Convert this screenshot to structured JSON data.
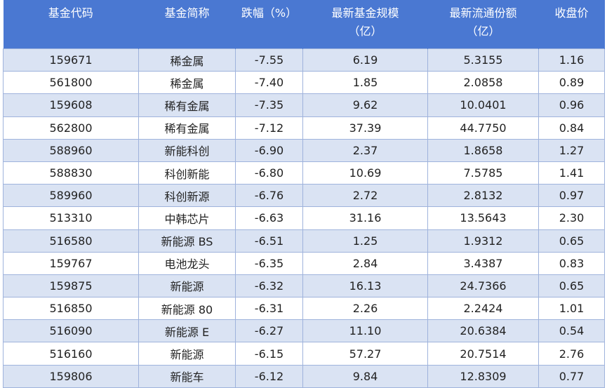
{
  "table": {
    "header": [
      [
        "基金代码"
      ],
      [
        "基金简称"
      ],
      [
        "跌幅（%）"
      ],
      [
        "最新基金规模",
        "（亿）"
      ],
      [
        "最新流通份额",
        "（亿）"
      ],
      [
        "收盘价"
      ]
    ],
    "rows": [
      [
        "159671",
        "稀金属",
        "-7.55",
        "6.19",
        "5.3155",
        "1.16"
      ],
      [
        "561800",
        "稀金属",
        "-7.40",
        "1.85",
        "2.0858",
        "0.89"
      ],
      [
        "159608",
        "稀有金属",
        "-7.35",
        "9.62",
        "10.0401",
        "0.96"
      ],
      [
        "562800",
        "稀有金属",
        "-7.12",
        "37.39",
        "44.7750",
        "0.84"
      ],
      [
        "588960",
        "新能科创",
        "-6.90",
        "2.37",
        "1.8658",
        "1.27"
      ],
      [
        "588830",
        "科创新能",
        "-6.80",
        "10.69",
        "7.5785",
        "1.41"
      ],
      [
        "589960",
        "科创新源",
        "-6.76",
        "2.72",
        "2.8132",
        "0.97"
      ],
      [
        "513310",
        "中韩芯片",
        "-6.63",
        "31.16",
        "13.5643",
        "2.30"
      ],
      [
        "516580",
        "新能源 BS",
        "-6.51",
        "1.25",
        "1.9312",
        "0.65"
      ],
      [
        "159767",
        "电池龙头",
        "-6.35",
        "2.84",
        "3.4387",
        "0.83"
      ],
      [
        "159875",
        "新能源",
        "-6.32",
        "16.13",
        "24.7366",
        "0.65"
      ],
      [
        "516850",
        "新能源 80",
        "-6.31",
        "2.26",
        "2.2424",
        "1.01"
      ],
      [
        "516090",
        "新能源 E",
        "-6.27",
        "11.10",
        "20.6384",
        "0.54"
      ],
      [
        "516160",
        "新能源",
        "-6.15",
        "57.27",
        "20.7514",
        "2.76"
      ],
      [
        "159806",
        "新能车",
        "-6.12",
        "9.84",
        "12.8309",
        "0.77"
      ]
    ]
  }
}
